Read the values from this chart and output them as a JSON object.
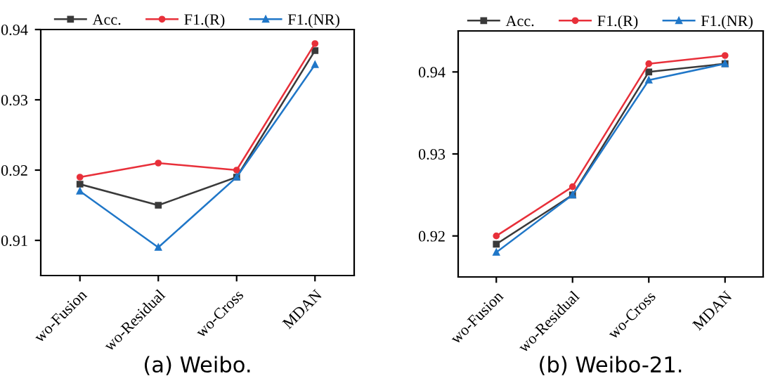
{
  "chart_data": [
    {
      "type": "line",
      "title": "(a) Weibo.",
      "categories": [
        "wo-Fusion",
        "wo-Residual",
        "wo-Cross",
        "MDAN"
      ],
      "series": [
        {
          "name": "Acc.",
          "color": "#3a3a3a",
          "marker": "square",
          "values": [
            0.918,
            0.915,
            0.919,
            0.937
          ]
        },
        {
          "name": "F1.(R)",
          "color": "#e8303a",
          "marker": "circle",
          "values": [
            0.919,
            0.921,
            0.92,
            0.938
          ]
        },
        {
          "name": "F1.(NR)",
          "color": "#2077c8",
          "marker": "triangle",
          "values": [
            0.917,
            0.909,
            0.919,
            0.935
          ]
        }
      ],
      "ylim": [
        0.905,
        0.94
      ],
      "yticks": [
        0.91,
        0.92,
        0.93,
        0.94
      ],
      "grid": false,
      "legend": "top",
      "line_style": "solid"
    },
    {
      "type": "line",
      "title": "(b) Weibo-21.",
      "categories": [
        "wo-Fusion",
        "wo-Residual",
        "wo-Cross",
        "MDAN"
      ],
      "series": [
        {
          "name": "Acc.",
          "color": "#3a3a3a",
          "marker": "square",
          "values": [
            0.919,
            0.925,
            0.94,
            0.941
          ]
        },
        {
          "name": "F1.(R)",
          "color": "#e8303a",
          "marker": "circle",
          "values": [
            0.92,
            0.926,
            0.941,
            0.942
          ]
        },
        {
          "name": "F1.(NR)",
          "color": "#2077c8",
          "marker": "triangle",
          "values": [
            0.918,
            0.925,
            0.939,
            0.941
          ]
        }
      ],
      "ylim": [
        0.915,
        0.945
      ],
      "yticks": [
        0.92,
        0.93,
        0.94
      ],
      "grid": false,
      "legend": "top",
      "line_style": "solid"
    }
  ]
}
